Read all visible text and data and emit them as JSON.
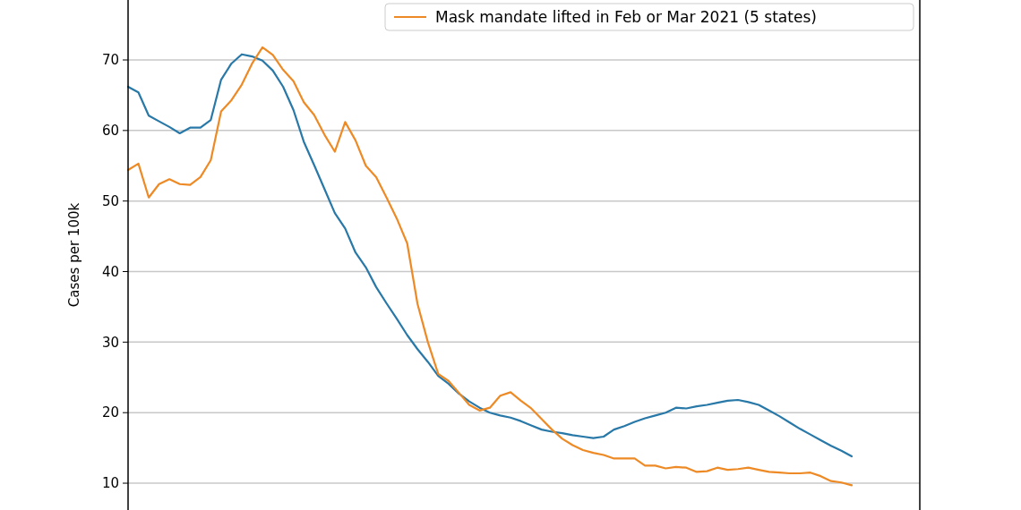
{
  "chart_data": {
    "type": "line",
    "ylabel": "Cases per 100k",
    "categories": [
      null,
      null,
      null,
      null,
      null,
      null,
      null,
      null,
      null,
      null,
      null,
      null,
      null,
      null,
      null,
      null,
      null,
      null,
      null,
      null,
      null,
      null,
      null,
      null,
      null,
      null,
      null,
      null,
      null,
      null,
      null,
      null,
      null,
      null,
      null,
      null,
      null,
      null,
      null,
      null,
      null,
      null,
      null,
      null,
      null,
      null,
      null,
      null,
      null,
      null,
      null,
      null,
      null,
      null,
      null,
      null,
      null,
      null,
      null,
      null,
      null,
      null,
      null,
      null,
      null,
      null,
      null,
      null,
      null,
      null,
      null
    ],
    "ylim": [
      6.2,
      78.5
    ],
    "yticks": [
      10,
      20,
      30,
      40,
      50,
      60,
      70
    ],
    "grid": "y",
    "legend": "top right",
    "line_style": "solid",
    "marker": "none",
    "series": [
      {
        "color": "#2878a8",
        "values": [
          66.2,
          65.4,
          62.1,
          61.3,
          60.5,
          59.6,
          60.4,
          60.4,
          61.5,
          67.2,
          69.5,
          70.8,
          70.5,
          69.9,
          68.5,
          66.2,
          62.9,
          58.4,
          55.1,
          51.7,
          48.3,
          46.1,
          42.7,
          40.6,
          37.8,
          35.5,
          33.3,
          31.0,
          29.0,
          27.2,
          25.2,
          24.1,
          22.7,
          21.6,
          20.7,
          20.0,
          19.6,
          19.3,
          18.8,
          18.2,
          17.6,
          17.3,
          17.1,
          16.8,
          16.6,
          16.4,
          16.6,
          17.6,
          18.1,
          18.7,
          19.2,
          19.6,
          20.0,
          20.7,
          20.6,
          20.9,
          21.1,
          21.4,
          21.7,
          21.8,
          21.5,
          21.1,
          20.3,
          19.5,
          18.6,
          17.7,
          16.9,
          16.1,
          15.3,
          14.6,
          13.8
        ]
      },
      {
        "name": "Mask mandate lifted in Feb or Mar 2021 (5 states)",
        "color": "#ee8a25",
        "values": [
          54.4,
          55.3,
          50.5,
          52.4,
          53.1,
          52.4,
          52.3,
          53.4,
          55.8,
          62.7,
          64.3,
          66.5,
          69.5,
          71.8,
          70.7,
          68.6,
          67.0,
          64.0,
          62.2,
          59.4,
          57.0,
          61.2,
          58.6,
          55.0,
          53.4,
          50.5,
          47.5,
          44.0,
          35.4,
          30.0,
          25.5,
          24.5,
          22.8,
          21.1,
          20.3,
          20.7,
          22.4,
          22.9,
          21.7,
          20.6,
          19.1,
          17.6,
          16.3,
          15.4,
          14.7,
          14.3,
          14.0,
          13.5,
          13.5,
          13.5,
          12.5,
          12.5,
          12.1,
          12.3,
          12.2,
          11.6,
          11.7,
          12.2,
          11.9,
          12.0,
          12.2,
          11.9,
          11.6,
          11.5,
          11.4,
          11.4,
          11.5,
          11.0,
          10.3,
          10.1,
          9.7
        ]
      }
    ]
  }
}
